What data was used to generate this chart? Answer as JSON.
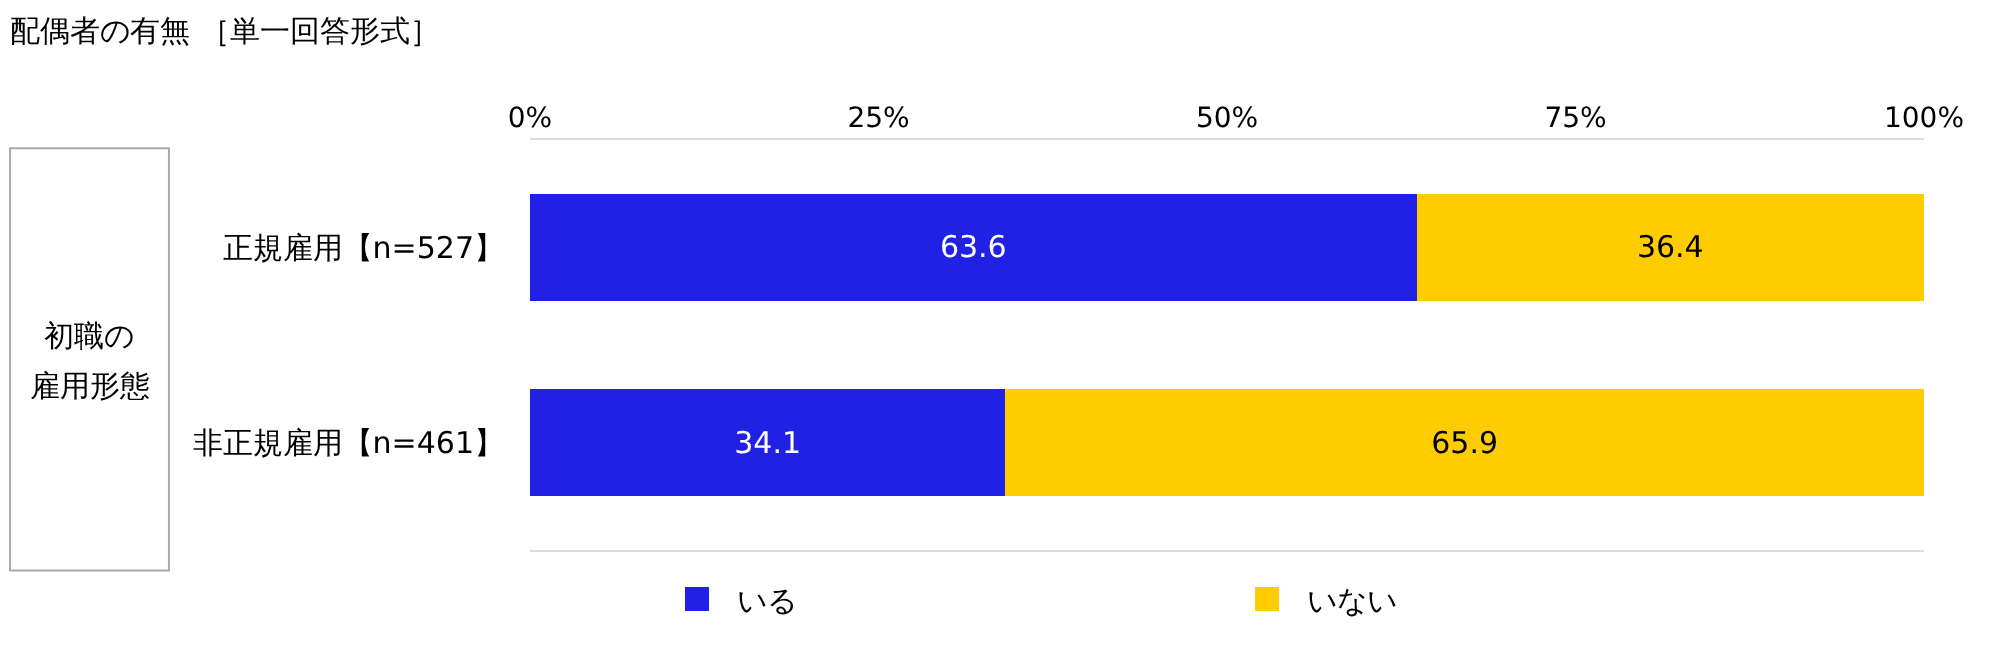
{
  "chart_data": {
    "type": "bar",
    "orientation": "horizontal",
    "stacked": true,
    "title": "配偶者の有無 ［単一回答形式］",
    "categories": [
      "正規雇用【n=527】",
      "非正規雇用【n=461】"
    ],
    "series": [
      {
        "name": "いる",
        "color": "#2121e6",
        "values": [
          63.6,
          34.1
        ]
      },
      {
        "name": "いない",
        "color": "#ffcc00",
        "values": [
          36.4,
          65.9
        ]
      }
    ],
    "xlim": [
      0,
      100
    ],
    "xticks": [
      {
        "value": 0,
        "label": "0%"
      },
      {
        "value": 25,
        "label": "25%"
      },
      {
        "value": 50,
        "label": "50%"
      },
      {
        "value": 75,
        "label": "75%"
      },
      {
        "value": 100,
        "label": "100%"
      }
    ],
    "annotations": [
      "初職の",
      "雇用形態"
    ],
    "data_labels": true,
    "legend": "bottom",
    "grid": false
  }
}
